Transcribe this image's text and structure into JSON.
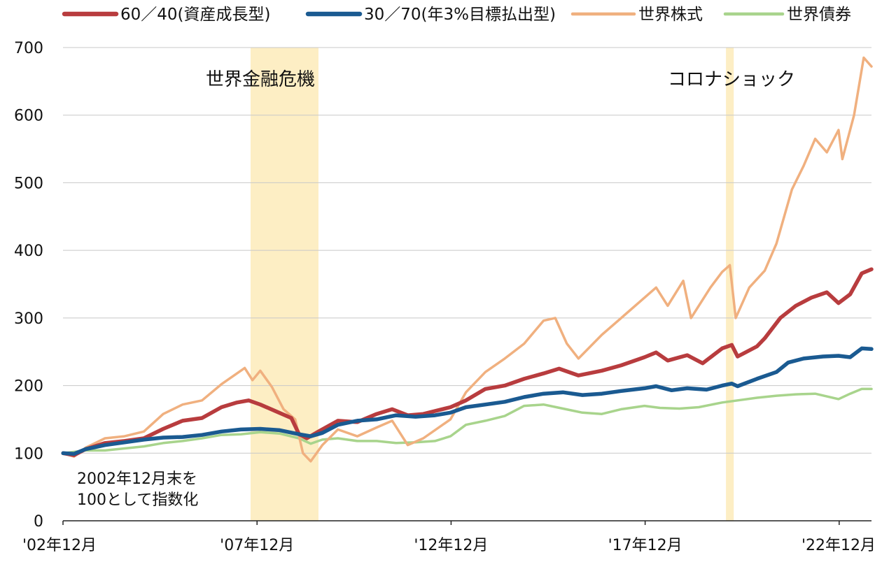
{
  "chart_data": {
    "type": "line",
    "title": "",
    "xlabel": "",
    "ylabel": "",
    "ylim": [
      0,
      700
    ],
    "yticks": [
      0,
      100,
      200,
      300,
      400,
      500,
      600,
      700
    ],
    "xlim": [
      2002.917,
      2023.75
    ],
    "xticks": [
      {
        "value": 2002.917,
        "label": "'02年12月"
      },
      {
        "value": 2007.917,
        "label": "'07年12月"
      },
      {
        "value": 2012.917,
        "label": "'12年12月"
      },
      {
        "value": 2017.917,
        "label": "'17年12月"
      },
      {
        "value": 2022.917,
        "label": "'22年12月"
      }
    ],
    "grid": "horizontal",
    "legend_position": "top",
    "shaded_periods": [
      {
        "label": "世界金融危機",
        "start": 2007.75,
        "end": 2009.5,
        "color": "#fdeec4"
      },
      {
        "label": "コロナショック",
        "start": 2020.0,
        "end": 2020.2,
        "color": "#fdeec4"
      }
    ],
    "note": [
      "2002年12月末を",
      "100として指数化"
    ],
    "series": [
      {
        "name": "60／40(資産成長型)",
        "color": "#b83c3e",
        "width": 5.5,
        "points": [
          [
            2002.92,
            100
          ],
          [
            2003.2,
            97
          ],
          [
            2003.5,
            106
          ],
          [
            2004.0,
            115
          ],
          [
            2004.5,
            118
          ],
          [
            2005.0,
            122
          ],
          [
            2005.5,
            136
          ],
          [
            2006.0,
            148
          ],
          [
            2006.5,
            152
          ],
          [
            2007.0,
            168
          ],
          [
            2007.4,
            175
          ],
          [
            2007.7,
            178
          ],
          [
            2008.0,
            172
          ],
          [
            2008.4,
            162
          ],
          [
            2008.8,
            152
          ],
          [
            2009.0,
            128
          ],
          [
            2009.2,
            122
          ],
          [
            2009.5,
            132
          ],
          [
            2010.0,
            148
          ],
          [
            2010.5,
            146
          ],
          [
            2011.0,
            158
          ],
          [
            2011.4,
            165
          ],
          [
            2011.8,
            156
          ],
          [
            2012.2,
            158
          ],
          [
            2012.9,
            168
          ],
          [
            2013.3,
            178
          ],
          [
            2013.8,
            195
          ],
          [
            2014.3,
            200
          ],
          [
            2014.8,
            210
          ],
          [
            2015.3,
            218
          ],
          [
            2015.7,
            225
          ],
          [
            2016.2,
            215
          ],
          [
            2016.8,
            222
          ],
          [
            2017.3,
            230
          ],
          [
            2017.9,
            242
          ],
          [
            2018.2,
            249
          ],
          [
            2018.5,
            237
          ],
          [
            2019.0,
            245
          ],
          [
            2019.4,
            233
          ],
          [
            2019.9,
            255
          ],
          [
            2020.15,
            260
          ],
          [
            2020.3,
            243
          ],
          [
            2020.8,
            258
          ],
          [
            2021.0,
            270
          ],
          [
            2021.4,
            300
          ],
          [
            2021.8,
            318
          ],
          [
            2022.2,
            330
          ],
          [
            2022.6,
            338
          ],
          [
            2022.9,
            322
          ],
          [
            2023.2,
            335
          ],
          [
            2023.5,
            366
          ],
          [
            2023.75,
            372
          ]
        ]
      },
      {
        "name": "30／70(年3%目標払出型)",
        "color": "#1a5a91",
        "width": 5.5,
        "points": [
          [
            2002.92,
            100
          ],
          [
            2003.2,
            99
          ],
          [
            2003.5,
            106
          ],
          [
            2004.0,
            112
          ],
          [
            2004.5,
            116
          ],
          [
            2005.0,
            120
          ],
          [
            2005.5,
            123
          ],
          [
            2006.0,
            124
          ],
          [
            2006.5,
            127
          ],
          [
            2007.0,
            132
          ],
          [
            2007.5,
            135
          ],
          [
            2008.0,
            136
          ],
          [
            2008.5,
            134
          ],
          [
            2009.0,
            128
          ],
          [
            2009.3,
            125
          ],
          [
            2009.6,
            130
          ],
          [
            2010.0,
            142
          ],
          [
            2010.5,
            148
          ],
          [
            2011.0,
            150
          ],
          [
            2011.5,
            156
          ],
          [
            2012.0,
            154
          ],
          [
            2012.5,
            156
          ],
          [
            2012.9,
            160
          ],
          [
            2013.3,
            168
          ],
          [
            2013.8,
            172
          ],
          [
            2014.3,
            176
          ],
          [
            2014.8,
            183
          ],
          [
            2015.3,
            188
          ],
          [
            2015.8,
            190
          ],
          [
            2016.3,
            186
          ],
          [
            2016.8,
            188
          ],
          [
            2017.3,
            192
          ],
          [
            2017.9,
            196
          ],
          [
            2018.2,
            199
          ],
          [
            2018.6,
            193
          ],
          [
            2019.0,
            196
          ],
          [
            2019.5,
            194
          ],
          [
            2019.9,
            200
          ],
          [
            2020.15,
            203
          ],
          [
            2020.3,
            199
          ],
          [
            2020.8,
            210
          ],
          [
            2021.3,
            220
          ],
          [
            2021.6,
            234
          ],
          [
            2022.0,
            240
          ],
          [
            2022.5,
            243
          ],
          [
            2022.9,
            244
          ],
          [
            2023.2,
            242
          ],
          [
            2023.5,
            255
          ],
          [
            2023.75,
            254
          ]
        ]
      },
      {
        "name": "世界株式",
        "color": "#f0b07f",
        "width": 3.5,
        "points": [
          [
            2002.92,
            100
          ],
          [
            2003.2,
            95
          ],
          [
            2003.5,
            108
          ],
          [
            2004.0,
            122
          ],
          [
            2004.5,
            125
          ],
          [
            2005.0,
            132
          ],
          [
            2005.5,
            158
          ],
          [
            2006.0,
            172
          ],
          [
            2006.5,
            178
          ],
          [
            2007.0,
            202
          ],
          [
            2007.4,
            218
          ],
          [
            2007.6,
            226
          ],
          [
            2007.8,
            208
          ],
          [
            2008.0,
            222
          ],
          [
            2008.3,
            198
          ],
          [
            2008.6,
            165
          ],
          [
            2008.9,
            150
          ],
          [
            2009.1,
            100
          ],
          [
            2009.3,
            88
          ],
          [
            2009.6,
            112
          ],
          [
            2010.0,
            135
          ],
          [
            2010.5,
            125
          ],
          [
            2011.0,
            138
          ],
          [
            2011.4,
            148
          ],
          [
            2011.8,
            112
          ],
          [
            2012.2,
            122
          ],
          [
            2012.9,
            150
          ],
          [
            2013.3,
            190
          ],
          [
            2013.8,
            220
          ],
          [
            2014.3,
            240
          ],
          [
            2014.8,
            262
          ],
          [
            2015.3,
            296
          ],
          [
            2015.6,
            300
          ],
          [
            2015.9,
            262
          ],
          [
            2016.2,
            240
          ],
          [
            2016.8,
            275
          ],
          [
            2017.3,
            300
          ],
          [
            2017.9,
            330
          ],
          [
            2018.2,
            345
          ],
          [
            2018.5,
            318
          ],
          [
            2018.9,
            355
          ],
          [
            2019.1,
            300
          ],
          [
            2019.6,
            345
          ],
          [
            2019.9,
            368
          ],
          [
            2020.1,
            378
          ],
          [
            2020.25,
            300
          ],
          [
            2020.6,
            345
          ],
          [
            2021.0,
            370
          ],
          [
            2021.3,
            410
          ],
          [
            2021.7,
            490
          ],
          [
            2022.0,
            525
          ],
          [
            2022.3,
            565
          ],
          [
            2022.6,
            545
          ],
          [
            2022.9,
            578
          ],
          [
            2023.0,
            535
          ],
          [
            2023.3,
            600
          ],
          [
            2023.55,
            685
          ],
          [
            2023.75,
            672
          ]
        ]
      },
      {
        "name": "世界債券",
        "color": "#a8d48c",
        "width": 3.5,
        "points": [
          [
            2002.92,
            100
          ],
          [
            2003.5,
            104
          ],
          [
            2004.0,
            104
          ],
          [
            2004.5,
            107
          ],
          [
            2005.0,
            110
          ],
          [
            2005.5,
            115
          ],
          [
            2006.0,
            118
          ],
          [
            2006.5,
            122
          ],
          [
            2007.0,
            127
          ],
          [
            2007.5,
            128
          ],
          [
            2008.0,
            131
          ],
          [
            2008.5,
            129
          ],
          [
            2009.0,
            122
          ],
          [
            2009.3,
            114
          ],
          [
            2009.6,
            120
          ],
          [
            2010.0,
            122
          ],
          [
            2010.5,
            118
          ],
          [
            2011.0,
            118
          ],
          [
            2011.5,
            115
          ],
          [
            2012.0,
            116
          ],
          [
            2012.5,
            118
          ],
          [
            2012.9,
            125
          ],
          [
            2013.3,
            142
          ],
          [
            2013.8,
            148
          ],
          [
            2014.3,
            155
          ],
          [
            2014.8,
            170
          ],
          [
            2015.3,
            172
          ],
          [
            2015.8,
            166
          ],
          [
            2016.3,
            160
          ],
          [
            2016.8,
            158
          ],
          [
            2017.3,
            165
          ],
          [
            2017.9,
            170
          ],
          [
            2018.3,
            167
          ],
          [
            2018.8,
            166
          ],
          [
            2019.3,
            168
          ],
          [
            2019.9,
            175
          ],
          [
            2020.3,
            178
          ],
          [
            2020.8,
            182
          ],
          [
            2021.3,
            185
          ],
          [
            2021.8,
            187
          ],
          [
            2022.3,
            188
          ],
          [
            2022.9,
            180
          ],
          [
            2023.2,
            188
          ],
          [
            2023.5,
            195
          ],
          [
            2023.75,
            195
          ]
        ]
      }
    ]
  }
}
